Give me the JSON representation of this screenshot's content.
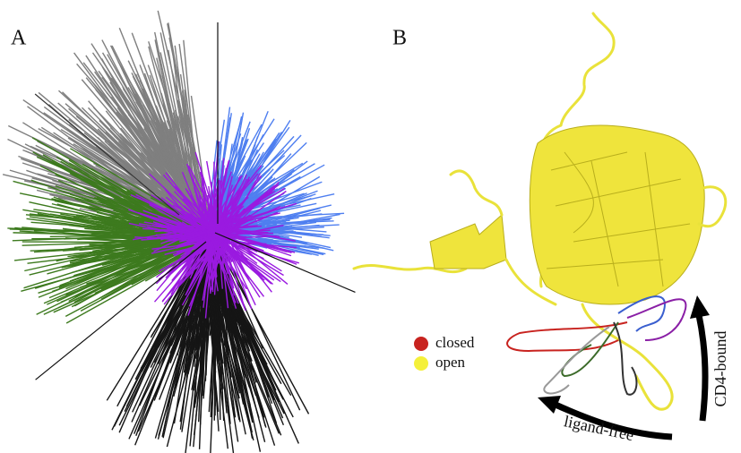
{
  "panel_a": {
    "label": "A"
  },
  "panel_b": {
    "label": "B",
    "legend": [
      {
        "label": "closed",
        "color": "#c8231f"
      },
      {
        "label": "open",
        "color": "#f4f03a"
      }
    ],
    "arrows": [
      {
        "label": "CD4-bound"
      },
      {
        "label": "ligand-free"
      }
    ]
  }
}
